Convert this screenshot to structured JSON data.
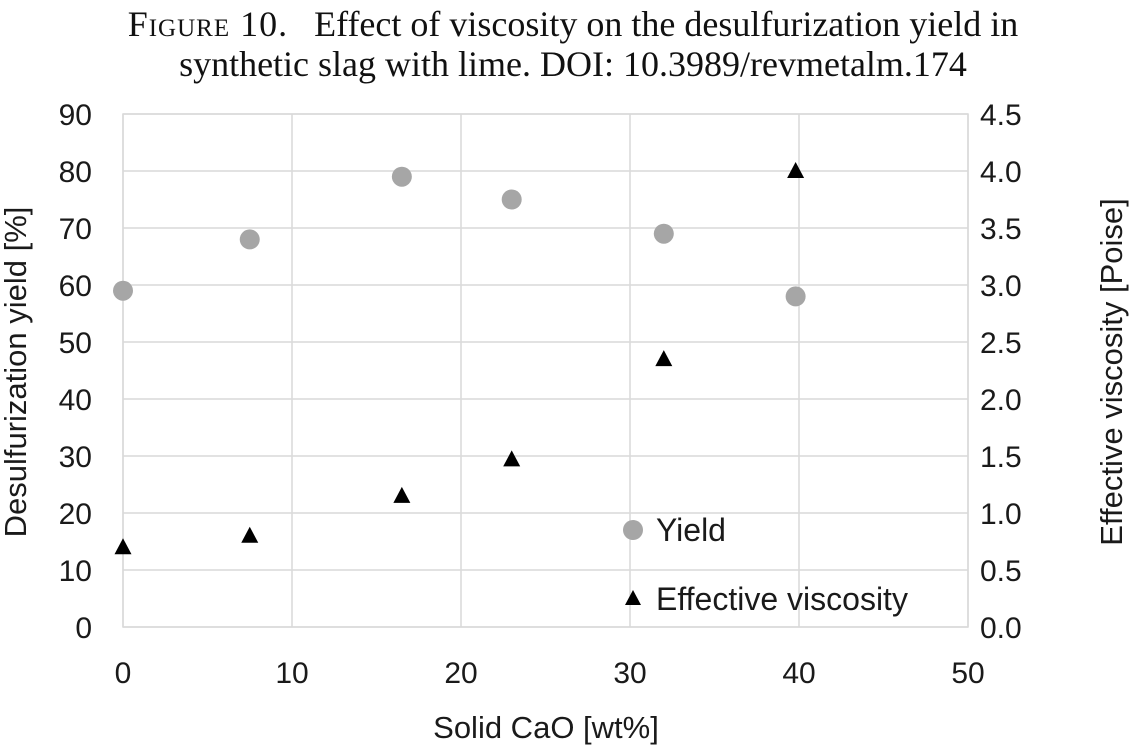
{
  "caption": {
    "label": "Figure 10.",
    "line1": "Effect of viscosity on the desulfurization yield in",
    "line2": "synthetic slag with lime. DOI: 10.3989/revmetalm.174"
  },
  "chart_data": {
    "type": "scatter",
    "xlabel": "Solid CaO [wt%]",
    "ylabel": "Desulfurization yield [%]",
    "y2label": "Effective viscosity [Poise]",
    "xlim": [
      0,
      50
    ],
    "ylim": [
      0,
      90
    ],
    "y2lim": [
      0.0,
      4.5
    ],
    "x_ticks": [
      "0",
      "10",
      "20",
      "30",
      "40",
      "50"
    ],
    "y_ticks": [
      "0",
      "10",
      "20",
      "30",
      "40",
      "50",
      "60",
      "70",
      "80",
      "90"
    ],
    "y2_ticks": [
      "0.0",
      "0.5",
      "1.0",
      "1.5",
      "2.0",
      "2.5",
      "3.0",
      "3.5",
      "4.0",
      "4.5"
    ],
    "grid": true,
    "legend_position": "bottom-right",
    "series": [
      {
        "name": "Yield",
        "axis": "left",
        "marker": "circle",
        "color": "#a6a6a6",
        "x": [
          0,
          7.5,
          16.5,
          23,
          32,
          39.8
        ],
        "y": [
          59,
          68,
          79,
          75,
          69,
          58
        ]
      },
      {
        "name": "Effective viscosity",
        "axis": "right",
        "marker": "triangle",
        "color": "#000000",
        "x": [
          0,
          7.5,
          16.5,
          23,
          32,
          39.8
        ],
        "y": [
          0.7,
          0.8,
          1.15,
          1.47,
          2.35,
          4.0
        ]
      }
    ]
  }
}
